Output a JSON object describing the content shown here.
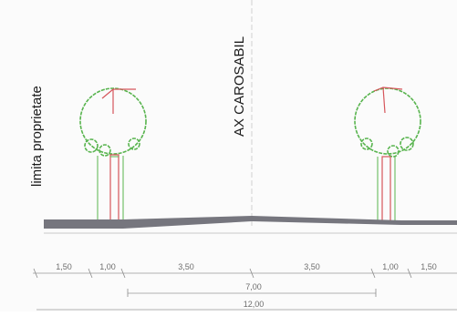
{
  "labels": {
    "property_limit": "limita proprietate",
    "axis": "AX CAROSABIL"
  },
  "dimensions": {
    "segments": [
      "1,50",
      "1,00",
      "3,50",
      "3,50",
      "1,00",
      "1,50"
    ],
    "carriageway_total": "7,00",
    "overall_total": "12,00"
  },
  "colors": {
    "tree_canopy": "#58b44e",
    "tree_trunk": "#d6555b",
    "road_surface": "#76767e"
  }
}
